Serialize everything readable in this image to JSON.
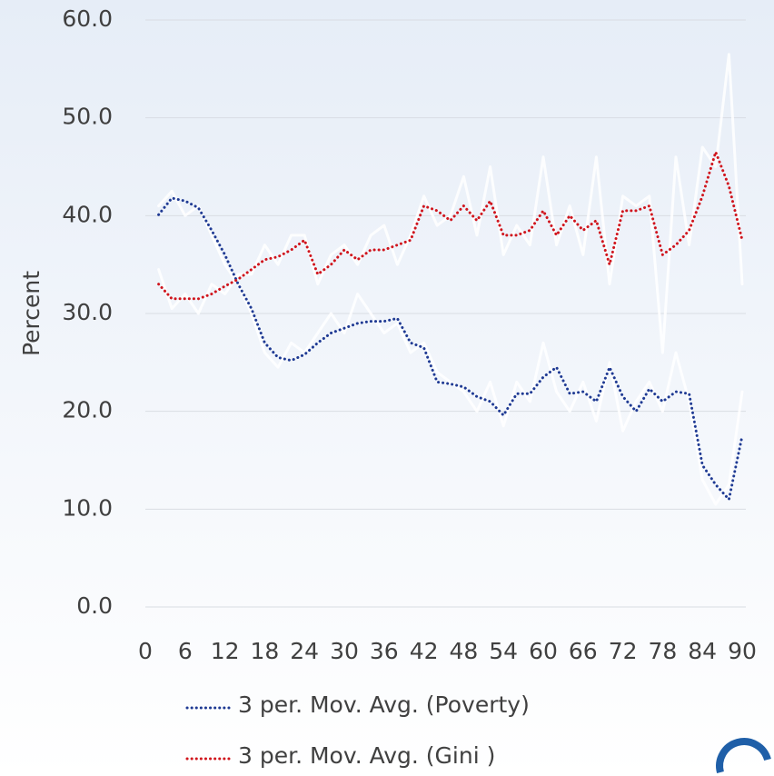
{
  "chart_data": {
    "type": "line",
    "y_label": "Percent",
    "x": [
      2,
      4,
      6,
      8,
      10,
      12,
      14,
      16,
      18,
      20,
      22,
      24,
      26,
      28,
      30,
      32,
      34,
      36,
      38,
      40,
      42,
      44,
      46,
      48,
      50,
      52,
      54,
      56,
      58,
      60,
      62,
      64,
      66,
      68,
      70,
      72,
      74,
      76,
      78,
      80,
      82,
      84,
      86,
      88,
      90
    ],
    "series": [
      {
        "color": "#ffffff",
        "style": "solid",
        "values": [
          41,
          42.5,
          40,
          41,
          38,
          35,
          33,
          30,
          26,
          24.5,
          27,
          26,
          28,
          30,
          28,
          32,
          30,
          28,
          29,
          26,
          27,
          24,
          23,
          22,
          20,
          23,
          18.5,
          23,
          21,
          27,
          22,
          20,
          23,
          19,
          25,
          18,
          21,
          23,
          20,
          26,
          21,
          13,
          10.5,
          12.5,
          22
        ]
      },
      {
        "color": "#ffffff",
        "style": "solid",
        "values": [
          34.5,
          30.5,
          32,
          30,
          33,
          32,
          34,
          34,
          37,
          35,
          38,
          38,
          33,
          36,
          37,
          35,
          38,
          39,
          35,
          38,
          42,
          39,
          40,
          44,
          38,
          45,
          36,
          39,
          37,
          46,
          37,
          41,
          36,
          46,
          33,
          42,
          41,
          42,
          26,
          46,
          37,
          47,
          45,
          56.5,
          33
        ]
      },
      {
        "name": "3 per. Mov. Avg. (Poverty)",
        "color": "#1f3a93",
        "style": "dotted",
        "values": [
          40.1,
          41.8,
          41.5,
          40.8,
          38.5,
          36,
          33,
          30.5,
          27,
          25.5,
          25.2,
          25.8,
          27,
          28,
          28.5,
          29,
          29.2,
          29.2,
          29.5,
          27,
          26.5,
          23,
          22.8,
          22.5,
          21.5,
          21,
          19.6,
          21.8,
          21.8,
          23.5,
          24.5,
          21.8,
          22,
          21,
          24.5,
          21.5,
          20,
          22.3,
          21,
          22,
          21.8,
          14.5,
          12.5,
          11,
          17.5
        ]
      },
      {
        "name": "3 per. Mov. Avg. (Gini )",
        "color": "#d0151d",
        "style": "dotted",
        "values": [
          33,
          31.5,
          31.5,
          31.5,
          32,
          32.8,
          33.5,
          34.5,
          35.5,
          35.8,
          36.5,
          37.5,
          34,
          35,
          36.5,
          35.5,
          36.5,
          36.5,
          37,
          37.5,
          41,
          40.5,
          39.5,
          41,
          39.5,
          41.5,
          38,
          38,
          38.5,
          40.5,
          38,
          40,
          38.5,
          39.5,
          35,
          40.5,
          40.5,
          41,
          36,
          37,
          38.5,
          42,
          46.5,
          43,
          37.5
        ]
      }
    ],
    "xlim": [
      0,
      90
    ],
    "xticks": [
      0,
      6,
      12,
      18,
      24,
      30,
      36,
      42,
      48,
      54,
      60,
      66,
      72,
      78,
      84,
      90
    ],
    "ylim": [
      0,
      60
    ],
    "yticks": [
      {
        "value": 0,
        "label": "0.0"
      },
      {
        "value": 10,
        "label": "10.0"
      },
      {
        "value": 20,
        "label": "20.0"
      },
      {
        "value": 30,
        "label": "30.0"
      },
      {
        "value": 40,
        "label": "40.0"
      },
      {
        "value": 50,
        "label": "50.0"
      },
      {
        "value": 60,
        "label": "60.0"
      }
    ],
    "grid": true
  }
}
